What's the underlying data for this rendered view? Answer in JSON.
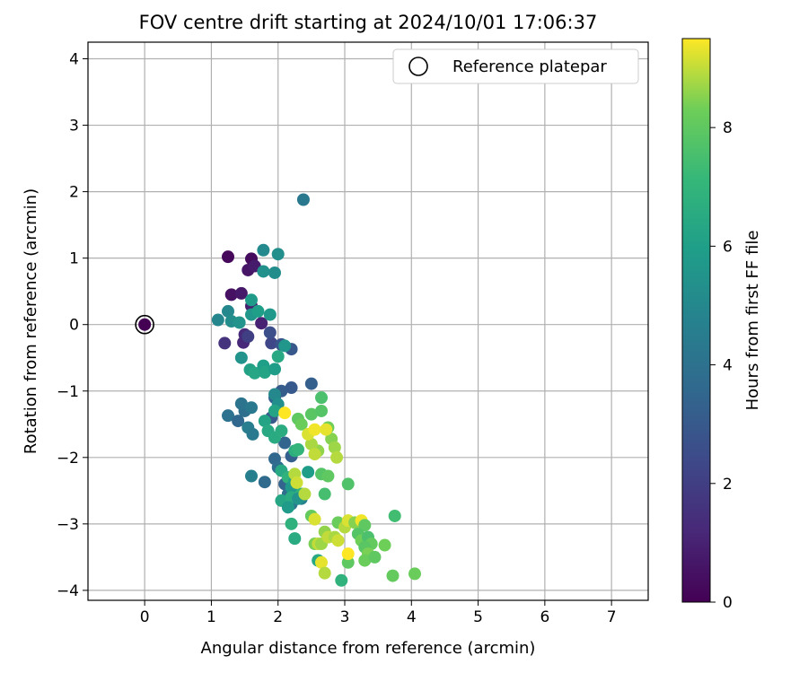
{
  "chart_data": {
    "type": "scatter",
    "title": "FOV centre drift starting at 2024/10/01 17:06:37",
    "xlabel": "Angular distance from reference (arcmin)",
    "ylabel": "Rotation from reference (arcmin)",
    "xlim": [
      -0.85,
      7.55
    ],
    "ylim": [
      -4.15,
      4.25
    ],
    "xticks": [
      "0",
      "1",
      "2",
      "3",
      "4",
      "5",
      "6",
      "7"
    ],
    "yticks": [
      "−4",
      "−3",
      "−2",
      "−1",
      "0",
      "1",
      "2",
      "3",
      "4"
    ],
    "grid": true,
    "legend": {
      "position": "top-right",
      "entries": [
        "Reference platepar"
      ]
    },
    "colorbar": {
      "label": "Hours from first FF file",
      "min": 0,
      "max": 9.5,
      "ticks": [
        "0",
        "2",
        "4",
        "6",
        "8"
      ],
      "colormap": "viridis"
    },
    "reference_point": {
      "x": 0,
      "y": 0,
      "color": "#440154"
    },
    "series": [
      {
        "points": [
          {
            "x": 1.25,
            "y": 1.02,
            "t": 0.2
          },
          {
            "x": 1.6,
            "y": 0.99,
            "t": 0.3
          },
          {
            "x": 1.55,
            "y": 0.82,
            "t": 0.6
          },
          {
            "x": 1.65,
            "y": 0.88,
            "t": 0.8
          },
          {
            "x": 1.3,
            "y": 0.45,
            "t": 0.5
          },
          {
            "x": 1.45,
            "y": 0.47,
            "t": 0.7
          },
          {
            "x": 1.6,
            "y": 0.28,
            "t": 0.9
          },
          {
            "x": 1.75,
            "y": 0.02,
            "t": 1.0
          },
          {
            "x": 1.5,
            "y": -0.15,
            "t": 1.3
          },
          {
            "x": 1.48,
            "y": -0.27,
            "t": 1.2
          },
          {
            "x": 1.2,
            "y": -0.28,
            "t": 1.6
          },
          {
            "x": 1.55,
            "y": -0.18,
            "t": 2.0
          },
          {
            "x": 1.9,
            "y": -0.28,
            "t": 2.3
          },
          {
            "x": 1.88,
            "y": -0.12,
            "t": 2.6
          },
          {
            "x": 2.05,
            "y": -0.3,
            "t": 2.8
          },
          {
            "x": 2.2,
            "y": -0.37,
            "t": 2.9
          },
          {
            "x": 2.5,
            "y": -0.89,
            "t": 3.2
          },
          {
            "x": 2.2,
            "y": -0.95,
            "t": 3.0
          },
          {
            "x": 2.05,
            "y": -1.0,
            "t": 3.1
          },
          {
            "x": 1.95,
            "y": -1.1,
            "t": 3.3
          },
          {
            "x": 1.9,
            "y": -1.4,
            "t": 3.0
          },
          {
            "x": 2.1,
            "y": -1.78,
            "t": 3.5
          },
          {
            "x": 2.2,
            "y": -1.98,
            "t": 3.2
          },
          {
            "x": 1.95,
            "y": -2.02,
            "t": 3.6
          },
          {
            "x": 2.0,
            "y": -2.15,
            "t": 3.8
          },
          {
            "x": 2.1,
            "y": -2.4,
            "t": 3.4
          },
          {
            "x": 2.15,
            "y": -2.55,
            "t": 3.9
          },
          {
            "x": 2.2,
            "y": -2.7,
            "t": 4.2
          },
          {
            "x": 1.8,
            "y": -2.37,
            "t": 3.7
          },
          {
            "x": 1.25,
            "y": -1.37,
            "t": 4.0
          },
          {
            "x": 1.4,
            "y": -1.45,
            "t": 3.6
          },
          {
            "x": 1.5,
            "y": -1.3,
            "t": 3.9
          },
          {
            "x": 1.45,
            "y": -1.19,
            "t": 4.1
          },
          {
            "x": 1.6,
            "y": -1.25,
            "t": 4.3
          },
          {
            "x": 1.55,
            "y": -1.55,
            "t": 4.5
          },
          {
            "x": 1.62,
            "y": -1.65,
            "t": 4.4
          },
          {
            "x": 1.6,
            "y": -2.28,
            "t": 4.6
          },
          {
            "x": 2.35,
            "y": -2.62,
            "t": 4.6
          },
          {
            "x": 2.6,
            "y": -3.55,
            "t": 4.8
          },
          {
            "x": 2.38,
            "y": 1.88,
            "t": 4.3
          },
          {
            "x": 1.1,
            "y": 0.07,
            "t": 4.9
          },
          {
            "x": 1.25,
            "y": 0.2,
            "t": 5.0
          },
          {
            "x": 1.3,
            "y": 0.05,
            "t": 5.2
          },
          {
            "x": 1.42,
            "y": 0.03,
            "t": 5.5
          },
          {
            "x": 1.6,
            "y": 0.15,
            "t": 5.6
          },
          {
            "x": 1.6,
            "y": 0.37,
            "t": 5.8
          },
          {
            "x": 1.7,
            "y": 0.2,
            "t": 6.0
          },
          {
            "x": 1.88,
            "y": 0.15,
            "t": 5.7
          },
          {
            "x": 1.78,
            "y": 1.12,
            "t": 5.1
          },
          {
            "x": 2.0,
            "y": 1.06,
            "t": 5.3
          },
          {
            "x": 1.78,
            "y": 0.8,
            "t": 5.4
          },
          {
            "x": 1.95,
            "y": 0.78,
            "t": 5.2
          },
          {
            "x": 1.45,
            "y": -0.5,
            "t": 5.5
          },
          {
            "x": 1.58,
            "y": -0.68,
            "t": 6.1
          },
          {
            "x": 1.65,
            "y": -0.73,
            "t": 6.3
          },
          {
            "x": 1.78,
            "y": -0.62,
            "t": 6.0
          },
          {
            "x": 1.8,
            "y": -0.72,
            "t": 6.2
          },
          {
            "x": 1.95,
            "y": -0.67,
            "t": 5.9
          },
          {
            "x": 2.0,
            "y": -0.48,
            "t": 6.4
          },
          {
            "x": 2.1,
            "y": -0.32,
            "t": 5.6
          },
          {
            "x": 1.95,
            "y": -1.05,
            "t": 5.0
          },
          {
            "x": 2.0,
            "y": -1.2,
            "t": 5.3
          },
          {
            "x": 1.8,
            "y": -1.45,
            "t": 6.2
          },
          {
            "x": 1.85,
            "y": -1.6,
            "t": 6.4
          },
          {
            "x": 1.95,
            "y": -1.7,
            "t": 6.5
          },
          {
            "x": 2.05,
            "y": -1.6,
            "t": 6.6
          },
          {
            "x": 1.95,
            "y": -1.3,
            "t": 6.2
          },
          {
            "x": 2.25,
            "y": -1.9,
            "t": 6.7
          },
          {
            "x": 2.3,
            "y": -1.88,
            "t": 7.0
          },
          {
            "x": 2.05,
            "y": -2.2,
            "t": 6.4
          },
          {
            "x": 2.15,
            "y": -2.3,
            "t": 6.9
          },
          {
            "x": 2.2,
            "y": -2.45,
            "t": 5.7
          },
          {
            "x": 2.05,
            "y": -2.65,
            "t": 6.3
          },
          {
            "x": 2.2,
            "y": -2.6,
            "t": 6.6
          },
          {
            "x": 2.15,
            "y": -2.75,
            "t": 5.8
          },
          {
            "x": 2.35,
            "y": -2.55,
            "t": 6.9
          },
          {
            "x": 2.45,
            "y": -2.22,
            "t": 5.9
          },
          {
            "x": 2.2,
            "y": -3.0,
            "t": 6.8
          },
          {
            "x": 2.25,
            "y": -3.22,
            "t": 6.5
          },
          {
            "x": 2.3,
            "y": -2.62,
            "t": 5.5
          },
          {
            "x": 2.6,
            "y": -3.55,
            "t": 6.4
          },
          {
            "x": 2.95,
            "y": -3.85,
            "t": 6.9
          },
          {
            "x": 2.25,
            "y": -2.35,
            "t": 6.0
          },
          {
            "x": 2.3,
            "y": -1.42,
            "t": 8.0
          },
          {
            "x": 2.35,
            "y": -1.5,
            "t": 8.2
          },
          {
            "x": 2.5,
            "y": -1.35,
            "t": 7.9
          },
          {
            "x": 2.65,
            "y": -1.1,
            "t": 7.6
          },
          {
            "x": 2.65,
            "y": -1.3,
            "t": 7.8
          },
          {
            "x": 2.75,
            "y": -1.55,
            "t": 8.3
          },
          {
            "x": 2.8,
            "y": -1.72,
            "t": 8.5
          },
          {
            "x": 2.85,
            "y": -1.85,
            "t": 8.7
          },
          {
            "x": 2.88,
            "y": -2.0,
            "t": 8.9
          },
          {
            "x": 2.6,
            "y": -1.9,
            "t": 8.6
          },
          {
            "x": 2.5,
            "y": -1.8,
            "t": 8.8
          },
          {
            "x": 2.45,
            "y": -1.65,
            "t": 9.2
          },
          {
            "x": 2.55,
            "y": -1.58,
            "t": 9.4
          },
          {
            "x": 2.1,
            "y": -1.33,
            "t": 9.5
          },
          {
            "x": 2.72,
            "y": -1.58,
            "t": 9.3
          },
          {
            "x": 2.55,
            "y": -1.95,
            "t": 9.0
          },
          {
            "x": 2.65,
            "y": -2.25,
            "t": 7.8
          },
          {
            "x": 2.75,
            "y": -2.28,
            "t": 8.0
          },
          {
            "x": 2.7,
            "y": -2.55,
            "t": 7.5
          },
          {
            "x": 3.05,
            "y": -2.4,
            "t": 7.7
          },
          {
            "x": 2.25,
            "y": -2.25,
            "t": 8.9
          },
          {
            "x": 2.28,
            "y": -2.38,
            "t": 9.1
          },
          {
            "x": 2.4,
            "y": -2.55,
            "t": 8.9
          },
          {
            "x": 2.5,
            "y": -2.88,
            "t": 8.1
          },
          {
            "x": 2.55,
            "y": -2.93,
            "t": 9.2
          },
          {
            "x": 2.55,
            "y": -3.3,
            "t": 8.4
          },
          {
            "x": 2.6,
            "y": -3.3,
            "t": 9.0
          },
          {
            "x": 2.65,
            "y": -3.3,
            "t": 8.7
          },
          {
            "x": 2.65,
            "y": -3.58,
            "t": 9.3
          },
          {
            "x": 2.7,
            "y": -3.12,
            "t": 8.6
          },
          {
            "x": 2.75,
            "y": -3.2,
            "t": 9.0
          },
          {
            "x": 2.85,
            "y": -3.2,
            "t": 8.8
          },
          {
            "x": 2.9,
            "y": -2.98,
            "t": 8.2
          },
          {
            "x": 3.0,
            "y": -3.05,
            "t": 8.9
          },
          {
            "x": 3.05,
            "y": -2.95,
            "t": 9.2
          },
          {
            "x": 3.15,
            "y": -2.98,
            "t": 8.5
          },
          {
            "x": 3.25,
            "y": -2.95,
            "t": 9.4
          },
          {
            "x": 3.3,
            "y": -3.02,
            "t": 8.0
          },
          {
            "x": 3.2,
            "y": -3.15,
            "t": 7.8
          },
          {
            "x": 3.25,
            "y": -3.25,
            "t": 8.3
          },
          {
            "x": 3.35,
            "y": -3.2,
            "t": 7.6
          },
          {
            "x": 3.4,
            "y": -3.3,
            "t": 8.1
          },
          {
            "x": 3.3,
            "y": -3.35,
            "t": 7.9
          },
          {
            "x": 3.35,
            "y": -3.45,
            "t": 8.4
          },
          {
            "x": 3.05,
            "y": -3.58,
            "t": 8.0
          },
          {
            "x": 3.05,
            "y": -3.45,
            "t": 9.5
          },
          {
            "x": 3.3,
            "y": -3.55,
            "t": 8.2
          },
          {
            "x": 3.45,
            "y": -3.5,
            "t": 8.0
          },
          {
            "x": 3.6,
            "y": -3.32,
            "t": 8.3
          },
          {
            "x": 3.75,
            "y": -2.88,
            "t": 7.4
          },
          {
            "x": 3.72,
            "y": -3.78,
            "t": 8.1
          },
          {
            "x": 4.05,
            "y": -3.75,
            "t": 8.2
          },
          {
            "x": 2.7,
            "y": -3.74,
            "t": 8.9
          },
          {
            "x": 2.9,
            "y": -3.25,
            "t": 9.1
          }
        ]
      }
    ]
  }
}
